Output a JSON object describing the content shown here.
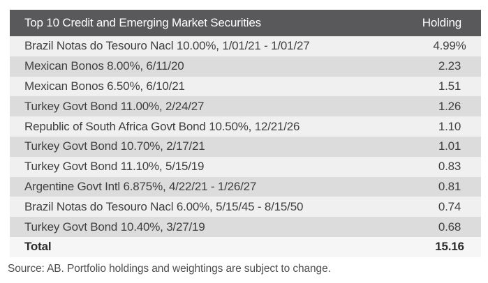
{
  "chart_data": {
    "type": "table",
    "title": "Top 10 Credit and Emerging Market Securities",
    "value_column": "Holding",
    "rows": [
      {
        "security": "Brazil Notas do Tesouro Nacl 10.00%, 1/01/21 - 1/01/27",
        "holding": "4.99%"
      },
      {
        "security": "Mexican Bonos 8.00%, 6/11/20",
        "holding": "2.23"
      },
      {
        "security": "Mexican Bonos 6.50%, 6/10/21",
        "holding": "1.51"
      },
      {
        "security": "Turkey Govt Bond 11.00%, 2/24/27",
        "holding": "1.26"
      },
      {
        "security": "Republic of South Africa Govt Bond 10.50%, 12/21/26",
        "holding": "1.10"
      },
      {
        "security": "Turkey Govt Bond 10.70%, 2/17/21",
        "holding": "1.01"
      },
      {
        "security": "Turkey Govt Bond 11.10%, 5/15/19",
        "holding": "0.83"
      },
      {
        "security": "Argentine Govt Intl 6.875%, 4/22/21 - 1/26/27",
        "holding": "0.81"
      },
      {
        "security": "Brazil Notas do Tesouro Nacl 6.00%, 5/15/45 - 8/15/50",
        "holding": "0.74"
      },
      {
        "security": "Turkey Govt Bond 10.40%, 3/27/19",
        "holding": "0.68"
      }
    ],
    "total": {
      "label": "Total",
      "holding": "15.16"
    },
    "source_note": "Source: AB. Portfolio holdings and weightings are subject to change."
  },
  "colors": {
    "header_bg": "#59595b",
    "header_text": "#ffffff",
    "row_light": "#f0f0f0",
    "row_dark": "#dcdcdd",
    "total_bg": "#f6f6f6",
    "body_text": "#3f4040",
    "source_text": "#4f4f4f"
  }
}
